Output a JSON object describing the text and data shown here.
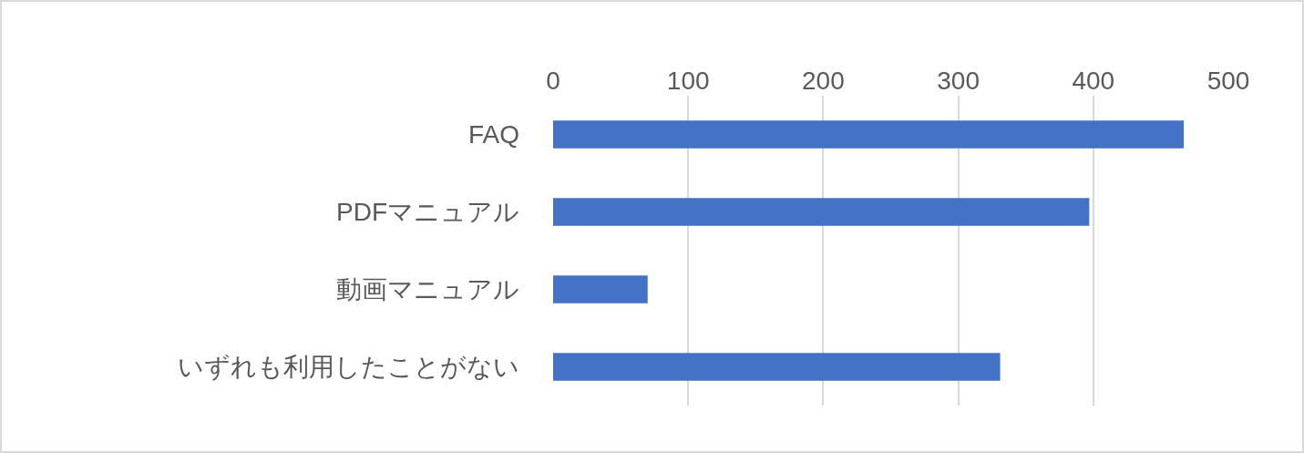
{
  "chart_data": {
    "type": "bar",
    "orientation": "horizontal",
    "categories": [
      "FAQ",
      "PDFマニュアル",
      "動画マニュアル",
      "いずれも利用したことがない"
    ],
    "values": [
      467,
      397,
      70,
      331
    ],
    "color": "#4472c4",
    "xlim": [
      0,
      500
    ],
    "xticks": [
      0,
      100,
      200,
      300,
      400,
      500
    ],
    "grid": "x",
    "legend": false
  }
}
